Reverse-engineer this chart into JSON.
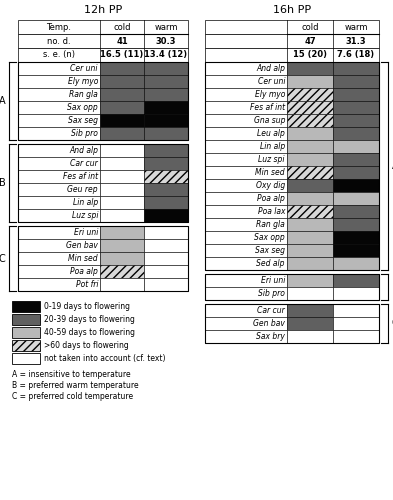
{
  "title_12h": "12h PP",
  "title_16h": "16h PP",
  "species_12h_A": [
    "Cer uni",
    "Ely myo",
    "Ran gla",
    "Sax opp",
    "Sax seg",
    "Sib pro"
  ],
  "species_12h_B": [
    "And alp",
    "Car cur",
    "Fes af int",
    "Geu rep",
    "Lin alp",
    "Luz spi"
  ],
  "species_12h_C": [
    "Eri uni",
    "Gen bav",
    "Min sed",
    "Poa alp",
    "Pot fri"
  ],
  "species_16h_A": [
    "And alp",
    "Cer uni",
    "Ely myo",
    "Fes af int",
    "Gna sup",
    "Leu alp",
    "Lin alp",
    "Luz spi",
    "Min sed",
    "Oxy dig",
    "Poa alp",
    "Poa lax",
    "Ran gla",
    "Sax opp",
    "Sax seg",
    "Sed alp"
  ],
  "species_16h_B": [
    "Eri uni",
    "Sib pro"
  ],
  "species_16h_C": [
    "Car cur",
    "Gen bav",
    "Sax bry"
  ],
  "data_12h_A_cold": [
    2,
    2,
    2,
    2,
    0,
    2
  ],
  "data_12h_A_warm": [
    2,
    2,
    2,
    0,
    0,
    2
  ],
  "data_12h_B_cold": [
    4,
    4,
    4,
    4,
    4,
    4
  ],
  "data_12h_B_warm": [
    2,
    2,
    3,
    2,
    2,
    0
  ],
  "data_12h_C_cold": [
    1,
    1,
    1,
    3,
    4
  ],
  "data_12h_C_warm": [
    4,
    4,
    4,
    4,
    4
  ],
  "data_16h_A_cold": [
    2,
    1,
    3,
    3,
    3,
    1,
    1,
    1,
    3,
    2,
    1,
    3,
    1,
    1,
    1,
    1
  ],
  "data_16h_A_warm": [
    2,
    2,
    2,
    2,
    2,
    2,
    1,
    2,
    2,
    0,
    1,
    2,
    2,
    0,
    0,
    1
  ],
  "data_16h_B_cold": [
    1,
    4
  ],
  "data_16h_B_warm": [
    2,
    4
  ],
  "data_16h_C_cold": [
    2,
    2,
    4
  ],
  "data_16h_C_warm": [
    4,
    4,
    4
  ],
  "header_12h": [
    [
      "Temp.",
      "cold",
      "warm"
    ],
    [
      "no. d.",
      "41",
      "30.3"
    ],
    [
      "s. e. (n)",
      "16.5 (11)",
      "13.4 (12)"
    ]
  ],
  "header_16h": [
    [
      "",
      "cold",
      "warm"
    ],
    [
      "",
      "47",
      "31.3"
    ],
    [
      "",
      "15 (20)",
      "7.6 (18)"
    ]
  ],
  "legend_items": [
    [
      "#050505",
      null,
      "0-19 days to flowering"
    ],
    [
      "#606060",
      null,
      "20-39 days to flowering"
    ],
    [
      "#b8b8b8",
      null,
      "40-59 days to flowering"
    ],
    [
      "#d8d8d8",
      "////",
      ">60 days to flowering"
    ],
    [
      "#ffffff",
      null,
      "not taken into account (cf. text)"
    ]
  ],
  "abc_labels": [
    "A = insensitive to temperature",
    "B = preferred warm temperature",
    "C = preferred cold temperature"
  ]
}
